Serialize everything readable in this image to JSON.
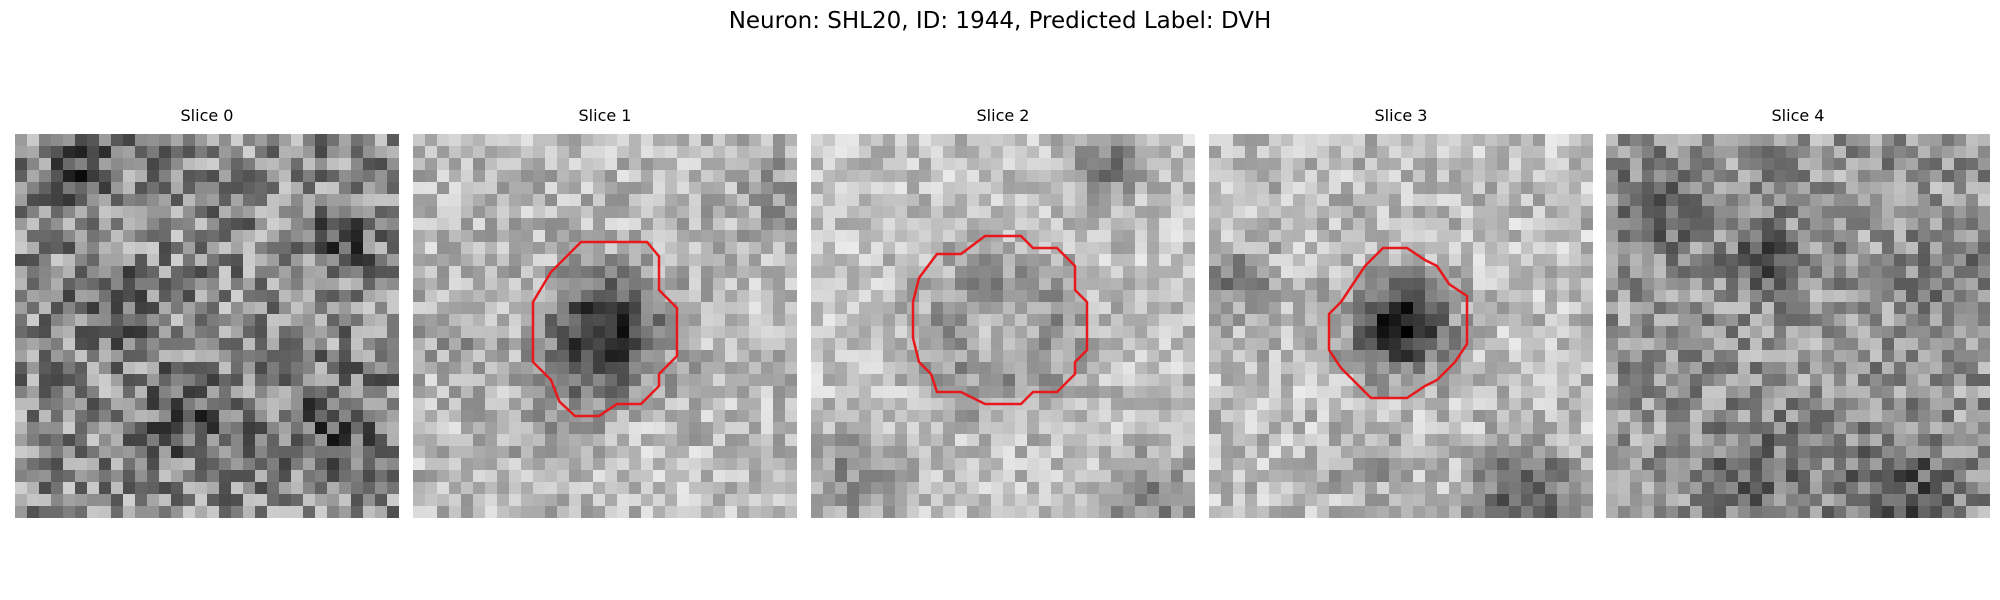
{
  "figure": {
    "title": "Neuron: SHL20, ID: 1944, Predicted Label: DVH"
  },
  "slices": [
    {
      "label": "Slice 0",
      "has_roi": false
    },
    {
      "label": "Slice 1",
      "has_roi": true
    },
    {
      "label": "Slice 2",
      "has_roi": true
    },
    {
      "label": "Slice 3",
      "has_roi": true
    },
    {
      "label": "Slice 4",
      "has_roi": false
    }
  ],
  "colors": {
    "roi_outline": "#e8191c"
  }
}
